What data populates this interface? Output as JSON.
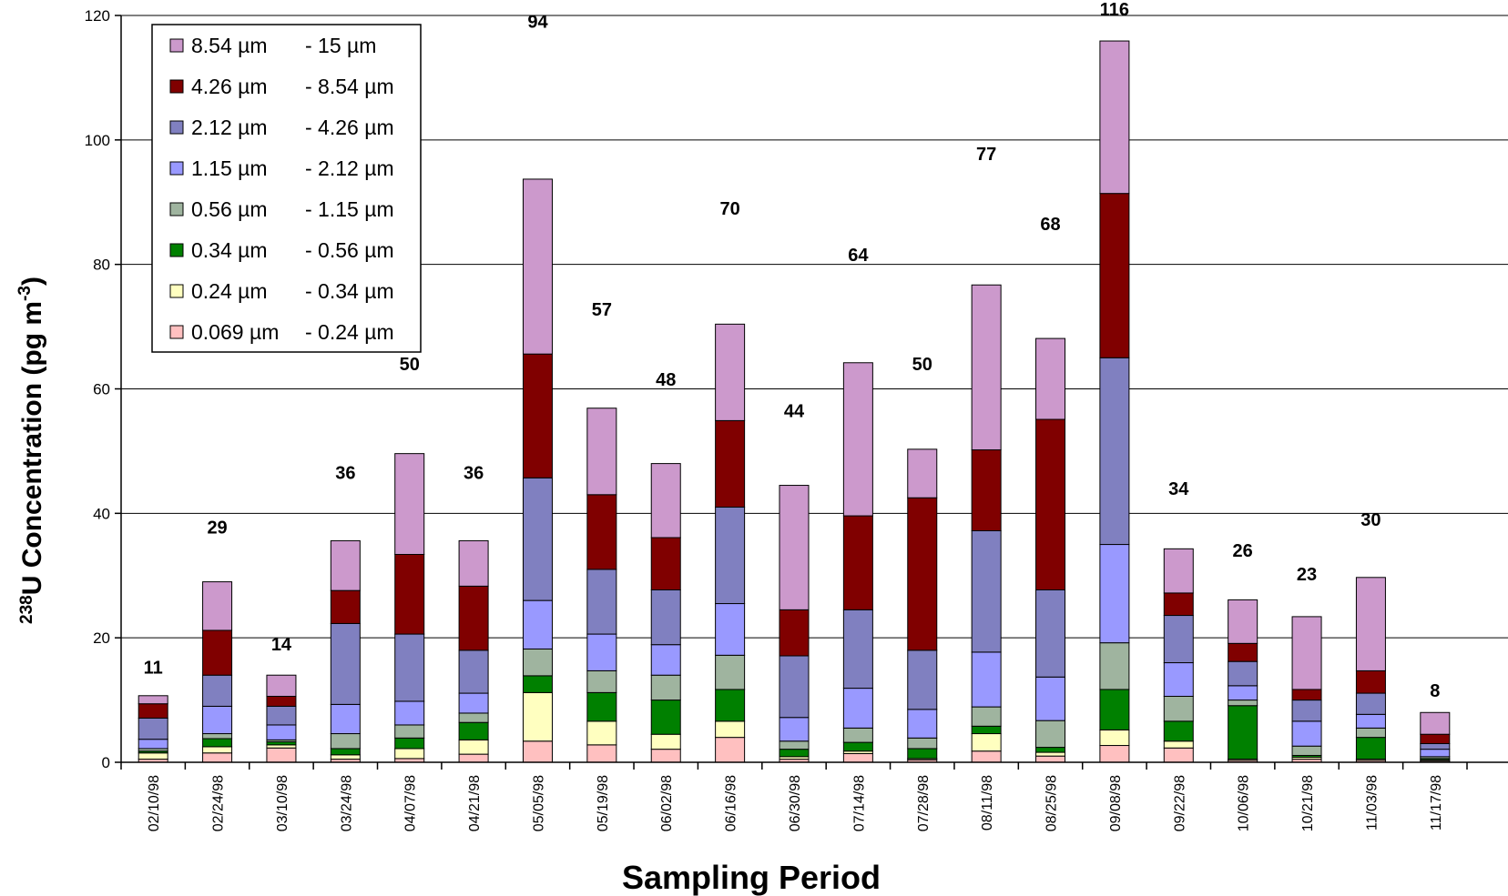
{
  "chart_data": {
    "type": "bar",
    "stacked": true,
    "xlabel": "Sampling Period",
    "ylabel_base": "U Concentration (pg m",
    "ylabel_superscript_prefix": "238",
    "ylabel_superscript_exponent": "-3",
    "ylabel_close": ")",
    "ylim": [
      0,
      120
    ],
    "yticks": [
      0,
      20,
      40,
      60,
      80,
      100,
      120
    ],
    "grid": true,
    "legend_position": "top-left",
    "categories": [
      "02/10/98",
      "02/24/98",
      "03/10/98",
      "03/24/98",
      "04/07/98",
      "04/21/98",
      "05/05/98",
      "05/19/98",
      "06/02/98",
      "06/16/98",
      "06/30/98",
      "07/14/98",
      "07/28/98",
      "08/11/98",
      "08/25/98",
      "09/08/98",
      "09/22/98",
      "10/06/98",
      "10/21/98",
      "11/03/98",
      "11/17/98"
    ],
    "totals_labels": [
      "11",
      "29",
      "14",
      "36",
      "50",
      "36",
      "94",
      "57",
      "48",
      "70",
      "44",
      "64",
      "50",
      "77",
      "68",
      "116",
      "34",
      "26",
      "23",
      "30",
      "8"
    ],
    "series": [
      {
        "name_from": "0.069 µm",
        "name_to": "- 0.24 µm",
        "color": "#FFC0C0",
        "values": [
          0.5,
          1.5,
          2.3,
          0.5,
          0.6,
          1.3,
          3.4,
          2.8,
          2.1,
          4.0,
          0.5,
          1.4,
          0.4,
          1.8,
          1.0,
          2.7,
          2.3,
          0.3,
          0.5,
          0.3,
          0.2
        ]
      },
      {
        "name_from": "0.24 µm",
        "name_to": "- 0.34 µm",
        "color": "#FFFFC0",
        "values": [
          1.0,
          1.0,
          0.5,
          0.7,
          1.6,
          2.3,
          7.8,
          3.8,
          2.4,
          2.6,
          0.4,
          0.4,
          0.2,
          2.8,
          0.6,
          2.5,
          1.1,
          0.2,
          0.3,
          0.2,
          0.2
        ]
      },
      {
        "name_from": "0.34 µm",
        "name_to": "- 0.56 µm",
        "color": "#008000",
        "values": [
          0.3,
          1.3,
          0.5,
          1.0,
          1.7,
          2.8,
          2.7,
          4.6,
          5.5,
          5.1,
          1.2,
          1.4,
          1.6,
          1.2,
          0.8,
          6.5,
          3.2,
          8.6,
          0.3,
          3.5,
          0.2
        ]
      },
      {
        "name_from": "0.56 µm",
        "name_to": "- 1.15 µm",
        "color": "#9FB49F",
        "values": [
          0.4,
          0.8,
          0.3,
          2.4,
          2.1,
          1.5,
          4.3,
          3.5,
          4.0,
          5.5,
          1.3,
          2.3,
          1.7,
          3.1,
          4.3,
          7.5,
          4.0,
          0.9,
          1.5,
          1.5,
          0.3
        ]
      },
      {
        "name_from": "1.15 µm",
        "name_to": "- 2.12 µm",
        "color": "#9999FF",
        "values": [
          1.5,
          4.4,
          2.4,
          4.7,
          3.8,
          3.2,
          7.8,
          5.9,
          4.9,
          8.3,
          3.8,
          6.4,
          4.6,
          8.8,
          7.0,
          15.8,
          5.4,
          2.3,
          4.0,
          2.2,
          1.2
        ]
      },
      {
        "name_from": "2.12 µm",
        "name_to": "- 4.26 µm",
        "color": "#8080C0",
        "values": [
          3.4,
          5.0,
          3.0,
          13.0,
          10.8,
          6.9,
          19.7,
          10.4,
          8.8,
          15.5,
          9.9,
          12.6,
          9.5,
          19.5,
          14.0,
          30.0,
          7.6,
          3.9,
          3.4,
          3.4,
          0.9
        ]
      },
      {
        "name_from": "4.26 µm",
        "name_to": "- 8.54 µm",
        "color": "#800000",
        "values": [
          2.3,
          7.2,
          1.6,
          5.3,
          12.8,
          10.3,
          19.9,
          12.0,
          8.4,
          13.9,
          7.4,
          15.1,
          24.5,
          13.0,
          27.4,
          26.4,
          3.6,
          2.9,
          1.7,
          3.6,
          1.5
        ]
      },
      {
        "name_from": "8.54 µm",
        "name_to": "- 15 µm",
        "color": "#CC99CC",
        "values": [
          1.3,
          7.8,
          3.4,
          8.0,
          16.2,
          7.3,
          28.1,
          13.9,
          11.9,
          15.5,
          20.0,
          24.6,
          7.8,
          26.5,
          13.0,
          24.5,
          7.1,
          7.0,
          11.7,
          15.0,
          3.5
        ]
      }
    ]
  }
}
